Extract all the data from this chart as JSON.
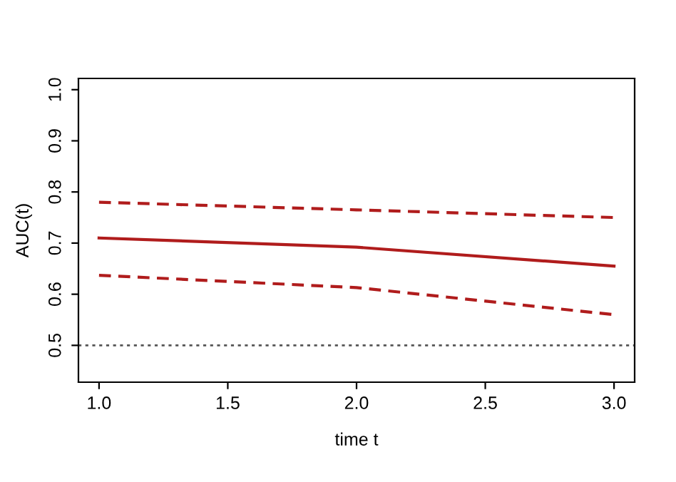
{
  "chart_data": {
    "type": "line",
    "xlabel": "time t",
    "ylabel": "AUC(t)",
    "x": [
      1,
      2,
      3
    ],
    "series": [
      {
        "color": "#b01c1c",
        "values": [
          0.71,
          0.692,
          0.655
        ],
        "line_style": "solid"
      },
      {
        "color": "#b01c1c",
        "values": [
          0.78,
          0.765,
          0.75
        ],
        "line_style": "dashed"
      },
      {
        "color": "#b01c1c",
        "values": [
          0.637,
          0.613,
          0.56
        ],
        "line_style": "dashed"
      }
    ],
    "xlim": [
      0.92,
      3.08
    ],
    "ylim": [
      0.428,
      1.022
    ],
    "xticks": [
      {
        "value": 1,
        "label": "1.0"
      },
      {
        "value": 1.5,
        "label": "1.5"
      },
      {
        "value": 2,
        "label": "2.0"
      },
      {
        "value": 2.5,
        "label": "2.5"
      },
      {
        "value": 3,
        "label": "3.0"
      }
    ],
    "yticks": [
      0.5,
      0.6,
      0.7,
      0.8,
      0.9,
      {
        "value": 1,
        "label": "1.0"
      }
    ],
    "ref_lines": [
      {
        "axis": "y",
        "value": 0.5,
        "color": "#555555",
        "line_style": "dotted"
      }
    ],
    "marker": "none",
    "grid": false,
    "legend": false
  }
}
